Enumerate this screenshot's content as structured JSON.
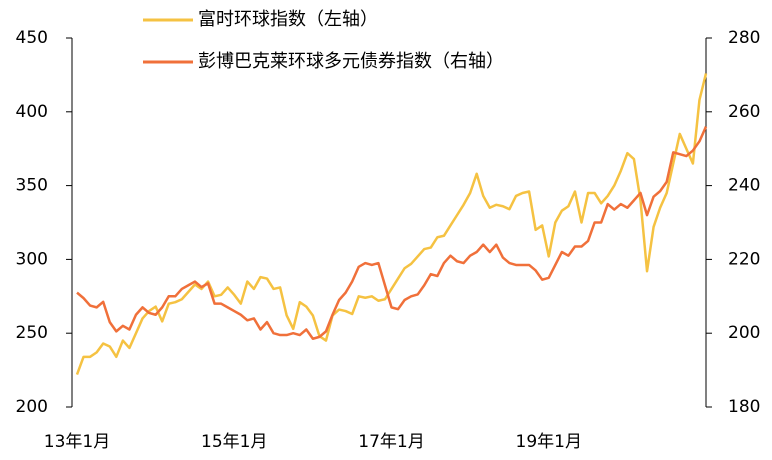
{
  "chart_data": {
    "type": "line",
    "categories": [
      "13年1月",
      null,
      null,
      null,
      null,
      null,
      null,
      null,
      null,
      null,
      null,
      null,
      null,
      null,
      null,
      null,
      null,
      null,
      null,
      null,
      null,
      null,
      null,
      null,
      "15年1月",
      null,
      null,
      null,
      null,
      null,
      null,
      null,
      null,
      null,
      null,
      null,
      null,
      null,
      null,
      null,
      null,
      null,
      null,
      null,
      null,
      null,
      null,
      null,
      "17年1月",
      null,
      null,
      null,
      null,
      null,
      null,
      null,
      null,
      null,
      null,
      null,
      null,
      null,
      null,
      null,
      null,
      null,
      null,
      null,
      null,
      null,
      null,
      null,
      "19年1月",
      null,
      null,
      null,
      null,
      null,
      null,
      null,
      null,
      null,
      null,
      null,
      null,
      null,
      null,
      null,
      null,
      null,
      null,
      null,
      null,
      null,
      null,
      null,
      null
    ],
    "series": [
      {
        "name": "富时环球指数（左轴）",
        "color": "#f5c242",
        "axis": "y",
        "values": [
          222,
          234,
          234,
          237,
          243,
          241,
          234,
          245,
          240,
          250,
          260,
          265,
          268,
          258,
          270,
          271,
          273,
          278,
          283,
          280,
          285,
          275,
          276,
          281,
          276,
          270,
          285,
          280,
          288,
          287,
          280,
          281,
          262,
          253,
          271,
          268,
          262,
          248,
          245,
          262,
          266,
          265,
          263,
          275,
          274,
          275,
          272,
          273,
          280,
          287,
          294,
          297,
          302,
          307,
          308,
          315,
          316,
          323,
          330,
          337,
          345,
          358,
          343,
          335,
          337,
          336,
          334,
          343,
          345,
          346,
          320,
          323,
          302,
          325,
          333,
          336,
          346,
          325,
          345,
          345,
          338,
          343,
          350,
          360,
          372,
          368,
          340,
          292,
          322,
          335,
          345,
          365,
          385,
          375,
          365,
          408,
          426
        ]
      },
      {
        "name": "彭博巴克莱环球多元债券指数（右轴）",
        "color": "#f0703a",
        "axis": "y2",
        "values": [
          211,
          209.5,
          207.5,
          207,
          208.5,
          203,
          200.5,
          202,
          201,
          205,
          207,
          205.5,
          205,
          207,
          210,
          210,
          212,
          213,
          214,
          212.5,
          213.5,
          208,
          208,
          207,
          206,
          205,
          203.5,
          204,
          201,
          203,
          200,
          199.5,
          199.5,
          200,
          199.5,
          201,
          198.5,
          199,
          200.5,
          205,
          209,
          211,
          214,
          218,
          219,
          218.5,
          219,
          213,
          207,
          206.5,
          209,
          210,
          210.5,
          213,
          216,
          215.5,
          219,
          221,
          219.5,
          219,
          221,
          222,
          224,
          222,
          224,
          220.5,
          219,
          218.5,
          218.5,
          218.5,
          217,
          214.5,
          215,
          218.5,
          222,
          221,
          223.5,
          223.5,
          225,
          230,
          230,
          235,
          233.5,
          235,
          234,
          236,
          238,
          232,
          237,
          238.5,
          241,
          249,
          248.5,
          248,
          249.5,
          252,
          256
        ]
      }
    ],
    "ylim": [
      200,
      450
    ],
    "yticks": [
      200,
      250,
      300,
      350,
      400,
      450
    ],
    "y2lim": [
      180,
      280
    ],
    "y2ticks": [
      180,
      200,
      220,
      240,
      260,
      280
    ]
  }
}
